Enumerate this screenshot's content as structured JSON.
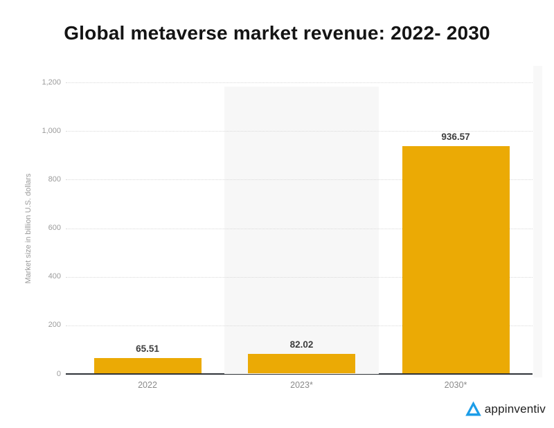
{
  "page": {
    "title": "Global metaverse market revenue: 2022- 2030"
  },
  "chart_data": {
    "type": "bar",
    "title": "Global metaverse market revenue: 2022- 2030",
    "categories": [
      "2022",
      "2023*",
      "2030*"
    ],
    "values": [
      65.51,
      82.02,
      936.57
    ],
    "value_labels": [
      "65.51",
      "82.02",
      "936.57"
    ],
    "xlabel": "",
    "ylabel": "Market size in billion U.S. dollars",
    "ylim": [
      0,
      1200
    ],
    "yticks": [
      0,
      200,
      400,
      600,
      800,
      1000,
      1200
    ],
    "ytick_labels": [
      "0",
      "200",
      "400",
      "600",
      "800",
      "1,000",
      "1,200"
    ],
    "grid": "horizontal-dotted",
    "legend_position": "none",
    "bar_color": "#ebaa05",
    "highlighted_category": "2023*"
  },
  "branding": {
    "logo_text": "appinventiv",
    "logo_color": "#1c9de8"
  },
  "colors": {
    "title": "#141414",
    "bar": "#ebaa05",
    "gridline": "#d9d9d9",
    "axis_line": "#2f3338",
    "tick_text": "#9b9b9b",
    "value_text": "#3d3d3d",
    "highlight_band": "#f7f7f7"
  }
}
